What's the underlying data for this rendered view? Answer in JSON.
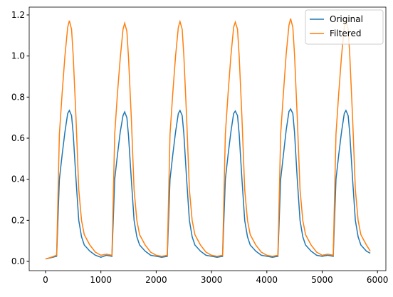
{
  "chart_data": {
    "type": "line",
    "x": [
      0,
      100,
      200,
      250,
      300,
      350,
      400,
      430,
      470,
      500,
      550,
      600,
      650,
      700,
      800,
      900,
      1000,
      1100,
      1200,
      1250,
      1300,
      1350,
      1400,
      1430,
      1470,
      1500,
      1550,
      1600,
      1650,
      1700,
      1800,
      1900,
      2000,
      2100,
      2200,
      2250,
      2300,
      2350,
      2400,
      2430,
      2470,
      2500,
      2550,
      2600,
      2650,
      2700,
      2800,
      2900,
      3000,
      3100,
      3200,
      3250,
      3300,
      3350,
      3400,
      3430,
      3470,
      3500,
      3550,
      3600,
      3650,
      3700,
      3800,
      3900,
      4000,
      4100,
      4200,
      4250,
      4300,
      4350,
      4400,
      4430,
      4470,
      4500,
      4550,
      4600,
      4650,
      4700,
      4800,
      4900,
      5000,
      5100,
      5200,
      5250,
      5300,
      5350,
      5400,
      5430,
      5470,
      5500,
      5550,
      5600,
      5650,
      5700,
      5800,
      5870
    ],
    "series": [
      {
        "name": "Original",
        "color": "#1f77b4",
        "values": [
          0.012,
          0.018,
          0.025,
          0.4,
          0.52,
          0.63,
          0.72,
          0.735,
          0.71,
          0.62,
          0.4,
          0.2,
          0.12,
          0.08,
          0.05,
          0.03,
          0.02,
          0.03,
          0.025,
          0.4,
          0.52,
          0.63,
          0.71,
          0.728,
          0.7,
          0.61,
          0.4,
          0.2,
          0.12,
          0.08,
          0.05,
          0.03,
          0.025,
          0.02,
          0.025,
          0.4,
          0.52,
          0.63,
          0.72,
          0.735,
          0.71,
          0.62,
          0.4,
          0.2,
          0.12,
          0.08,
          0.05,
          0.03,
          0.025,
          0.02,
          0.025,
          0.4,
          0.52,
          0.63,
          0.72,
          0.732,
          0.71,
          0.62,
          0.4,
          0.2,
          0.12,
          0.08,
          0.05,
          0.03,
          0.025,
          0.02,
          0.025,
          0.4,
          0.52,
          0.64,
          0.73,
          0.742,
          0.72,
          0.63,
          0.4,
          0.2,
          0.12,
          0.08,
          0.05,
          0.03,
          0.025,
          0.03,
          0.025,
          0.4,
          0.52,
          0.63,
          0.72,
          0.735,
          0.71,
          0.62,
          0.4,
          0.2,
          0.12,
          0.08,
          0.05,
          0.04
        ]
      },
      {
        "name": "Filtered",
        "color": "#ff7f0e",
        "values": [
          0.012,
          0.02,
          0.03,
          0.62,
          0.82,
          1.0,
          1.14,
          1.172,
          1.13,
          1.0,
          0.7,
          0.35,
          0.2,
          0.13,
          0.08,
          0.045,
          0.03,
          0.035,
          0.03,
          0.62,
          0.82,
          0.99,
          1.13,
          1.16,
          1.12,
          0.99,
          0.7,
          0.35,
          0.2,
          0.13,
          0.08,
          0.045,
          0.03,
          0.025,
          0.03,
          0.62,
          0.82,
          1.0,
          1.14,
          1.168,
          1.13,
          1.0,
          0.7,
          0.35,
          0.2,
          0.13,
          0.08,
          0.045,
          0.03,
          0.025,
          0.03,
          0.62,
          0.82,
          1.0,
          1.14,
          1.165,
          1.13,
          1.0,
          0.7,
          0.35,
          0.2,
          0.13,
          0.08,
          0.045,
          0.03,
          0.025,
          0.03,
          0.62,
          0.82,
          1.01,
          1.15,
          1.182,
          1.14,
          1.01,
          0.7,
          0.35,
          0.2,
          0.13,
          0.08,
          0.045,
          0.03,
          0.035,
          0.03,
          0.62,
          0.82,
          1.0,
          1.14,
          1.17,
          1.13,
          1.0,
          0.7,
          0.35,
          0.2,
          0.13,
          0.08,
          0.05
        ]
      }
    ],
    "xlim": [
      -296,
      6152
    ],
    "xticks": [
      0,
      1000,
      2000,
      3000,
      4000,
      5000,
      6000
    ],
    "ylim": [
      -0.045,
      1.238
    ],
    "yticks": [
      {
        "value": 0,
        "label": "0.0"
      },
      0.2,
      0.4,
      0.6,
      0.8,
      {
        "value": 1,
        "label": "1.0"
      },
      1.2
    ],
    "legend": "upper right"
  }
}
